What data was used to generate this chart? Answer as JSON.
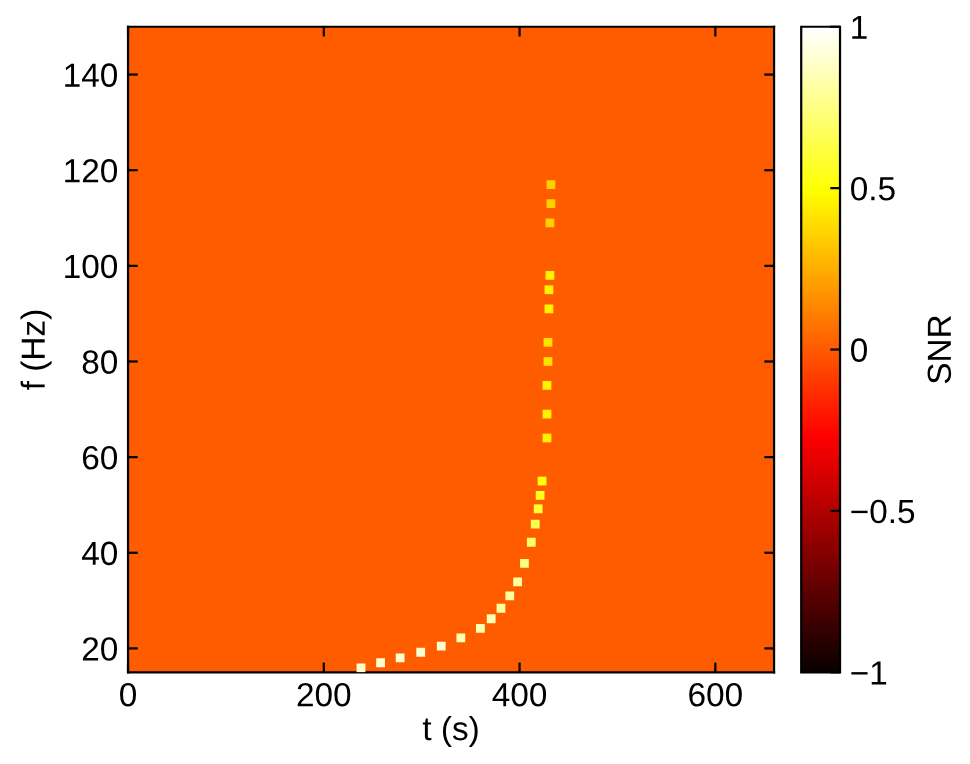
{
  "chart_data": {
    "type": "scatter",
    "xlabel": "t (s)",
    "ylabel": "f (Hz)",
    "clabel": "SNR",
    "xlim": [
      0,
      660
    ],
    "ylim": [
      15,
      150
    ],
    "xticks": [
      0,
      200,
      400,
      600
    ],
    "yticks": [
      20,
      40,
      60,
      80,
      100,
      120,
      140
    ],
    "clim": [
      -1,
      1
    ],
    "cticks": [
      {
        "value": -1,
        "label": "−1"
      },
      {
        "value": -0.5,
        "label": "−0.5"
      },
      0,
      0.5,
      1
    ],
    "bands": [
      {
        "axis": "y",
        "from": 15,
        "to": 150,
        "color": "#ff5c00"
      }
    ],
    "marker": "square",
    "x": [
      238,
      258,
      278,
      299,
      320,
      340,
      360,
      371,
      381,
      390,
      398,
      405,
      412,
      416,
      419,
      421,
      423,
      428,
      428,
      428,
      429,
      429,
      430,
      430,
      431,
      431,
      432,
      432
    ],
    "values": [
      15.9,
      17,
      18,
      19.2,
      20.5,
      22.2,
      24.2,
      26.2,
      28.4,
      31,
      33.9,
      37.8,
      42.2,
      46,
      49.2,
      52,
      55,
      64,
      69,
      75,
      80,
      84,
      91,
      95,
      98,
      109,
      113,
      117
    ],
    "cvalues": [
      0.9,
      0.9,
      0.9,
      0.9,
      0.9,
      0.85,
      0.85,
      0.85,
      0.8,
      0.8,
      0.8,
      0.75,
      0.7,
      0.65,
      0.6,
      0.55,
      0.5,
      0.45,
      0.45,
      0.45,
      0.4,
      0.4,
      0.45,
      0.45,
      0.45,
      0.35,
      0.35,
      0.35
    ]
  }
}
